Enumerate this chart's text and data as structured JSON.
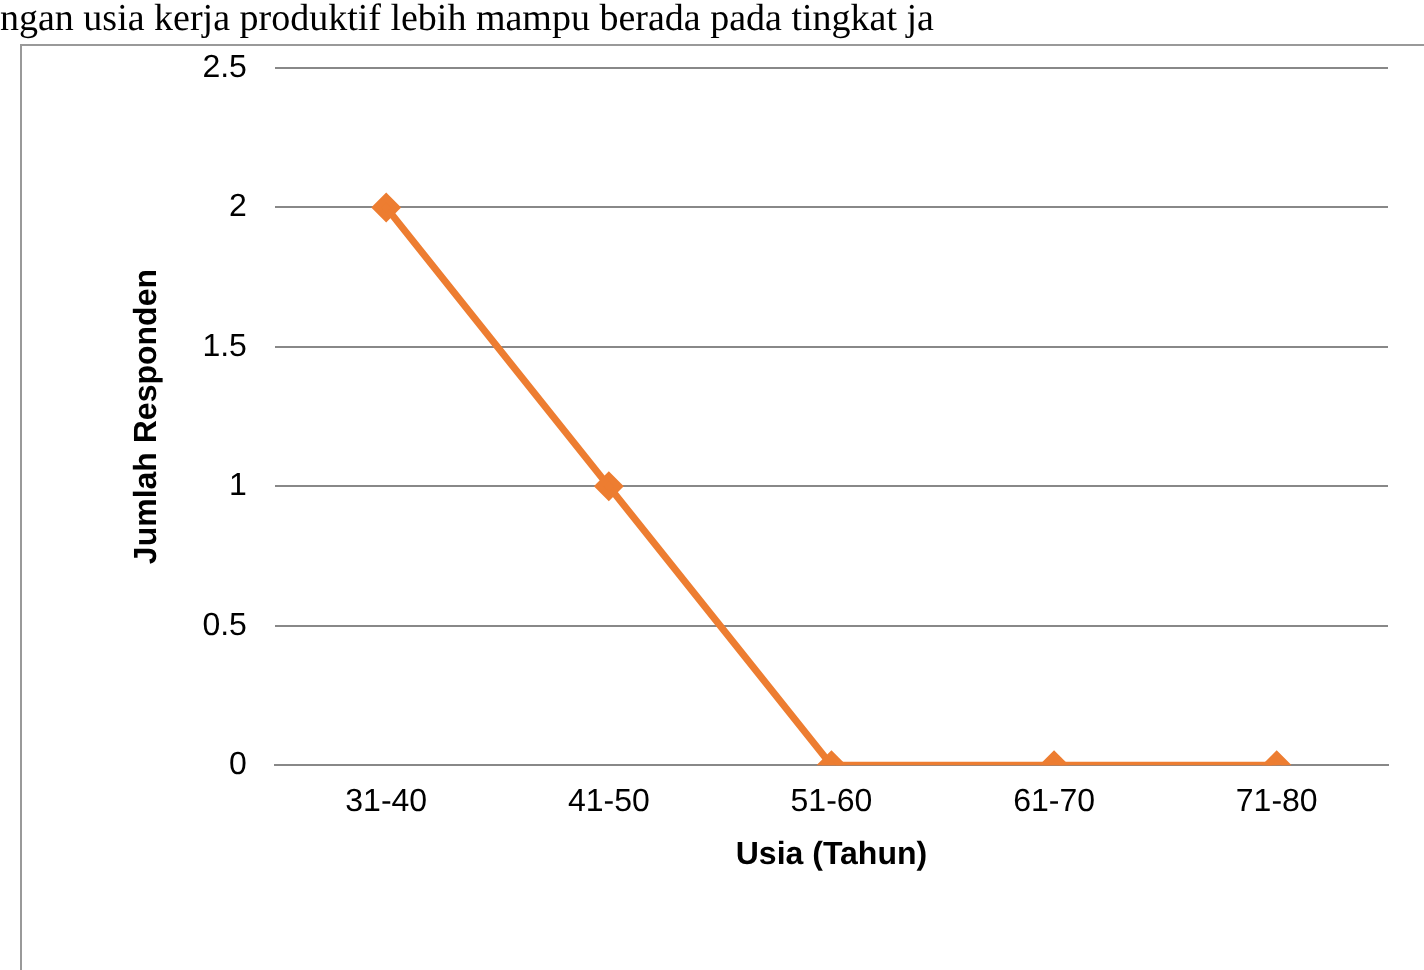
{
  "chart_data": {
    "type": "line",
    "xlabel": "Usia (Tahun)",
    "ylabel": "Jumlah Responden",
    "annotations": [
      "ngan usia kerja produktif lebih mampu berada pada tingkat ja"
    ],
    "categories": [
      "31-40",
      "41-50",
      "51-60",
      "61-70",
      "71-80"
    ],
    "series": [
      {
        "color": "#ed7d31",
        "values": [
          2,
          1,
          0,
          0,
          0
        ]
      }
    ],
    "ylim": [
      0,
      2.5
    ],
    "yticks": [
      0,
      0.5,
      1,
      1.5,
      2,
      2.5
    ],
    "grid": "y",
    "legend": false,
    "marker": "diamond",
    "line_style": "solid"
  }
}
